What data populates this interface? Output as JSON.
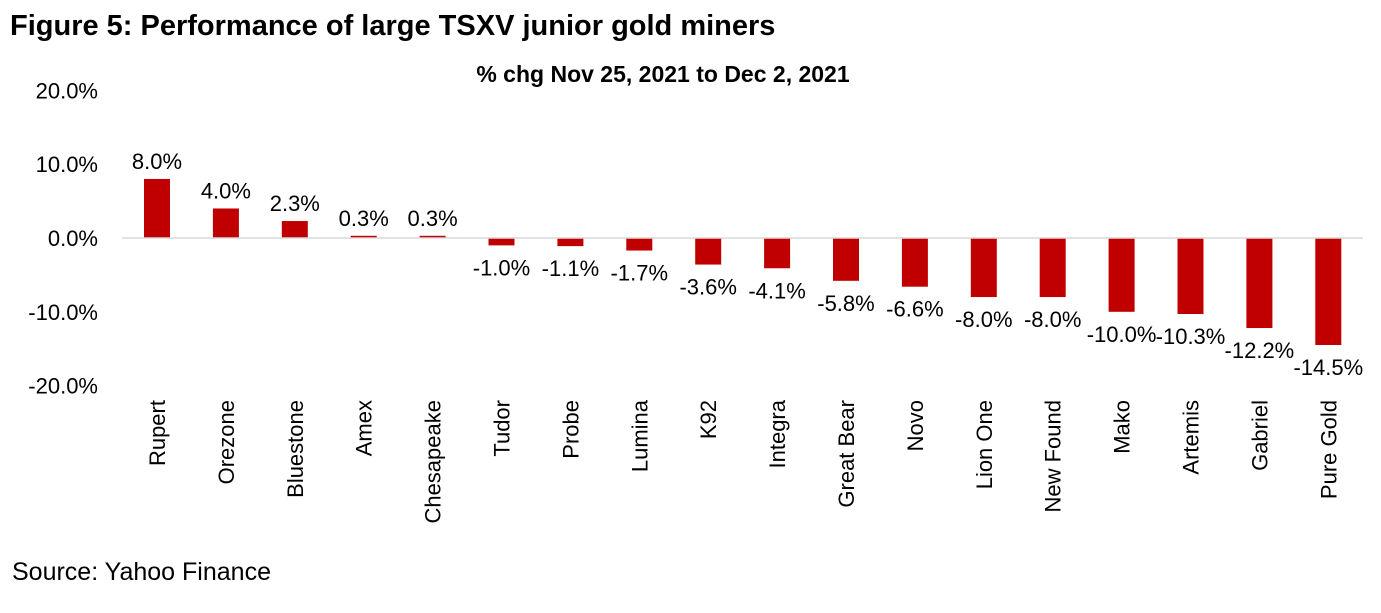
{
  "figure_title": "Figure 5: Performance of large TSXV junior gold miners",
  "source": "Source: Yahoo Finance",
  "chart_data": {
    "type": "bar",
    "title": "% chg Nov 25, 2021 to Dec 2, 2021",
    "xlabel": "",
    "ylabel": "",
    "ylim": [
      -20,
      20
    ],
    "yticks": [
      20,
      10,
      0,
      -10,
      -20
    ],
    "ytick_labels": [
      "20.0%",
      "10.0%",
      "0.0%",
      "-10.0%",
      "-20.0%"
    ],
    "grid": false,
    "bar_color": "#C00000",
    "categories": [
      "Rupert",
      "Orezone",
      "Bluestone",
      "Amex",
      "Chesapeake",
      "Tudor",
      "Probe",
      "Lumina",
      "K92",
      "Integra",
      "Great Bear",
      "Novo",
      "Lion One",
      "New Found",
      "Mako",
      "Artemis",
      "Gabriel",
      "Pure Gold"
    ],
    "values": [
      8.0,
      4.0,
      2.3,
      0.3,
      0.3,
      -1.0,
      -1.1,
      -1.7,
      -3.6,
      -4.1,
      -5.8,
      -6.6,
      -8.0,
      -8.0,
      -10.0,
      -10.3,
      -12.2,
      -14.5
    ],
    "data_labels": [
      "8.0%",
      "4.0%",
      "2.3%",
      "0.3%",
      "0.3%",
      "-1.0%",
      "-1.1%",
      "-1.7%",
      "-3.6%",
      "-4.1%",
      "-5.8%",
      "-6.6%",
      "-8.0%",
      "-8.0%",
      "-10.0%",
      "-10.3%",
      "-12.2%",
      "-14.5%"
    ]
  }
}
